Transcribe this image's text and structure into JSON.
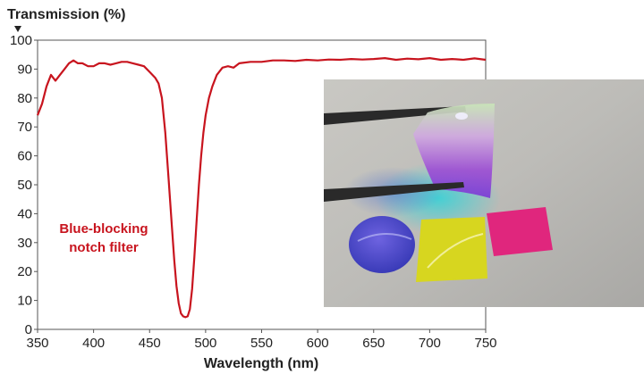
{
  "chart_data": {
    "type": "line",
    "title": "",
    "ylabel": "Transmission (%)",
    "xlabel": "Wavelength (nm)",
    "xlim": [
      350,
      750
    ],
    "ylim": [
      0,
      100
    ],
    "xticks": [
      350,
      400,
      450,
      500,
      550,
      600,
      650,
      700,
      750
    ],
    "yticks": [
      0,
      10,
      20,
      30,
      40,
      50,
      60,
      70,
      80,
      90,
      100
    ],
    "grid": false,
    "annotation": [
      "Blue-blocking",
      "notch filter"
    ],
    "series": [
      {
        "color": "#c8141e",
        "x": [
          350,
          354,
          358,
          362,
          366,
          370,
          374,
          378,
          382,
          386,
          390,
          395,
          400,
          405,
          410,
          415,
          420,
          425,
          430,
          435,
          440,
          445,
          450,
          455,
          458,
          461,
          464,
          467,
          470,
          472,
          474,
          476,
          478,
          480,
          482,
          484,
          486,
          488,
          490,
          492,
          494,
          496,
          498,
          500,
          503,
          506,
          510,
          515,
          520,
          525,
          530,
          540,
          550,
          560,
          570,
          580,
          590,
          600,
          610,
          620,
          630,
          640,
          650,
          660,
          670,
          680,
          690,
          700,
          710,
          720,
          730,
          740,
          750
        ],
        "values": [
          74,
          78,
          84,
          88,
          86,
          88,
          90,
          92,
          93,
          92,
          92,
          91,
          91,
          92,
          92,
          91.5,
          92,
          92.5,
          92.5,
          92,
          91.5,
          91,
          89,
          87,
          85,
          80,
          68,
          52,
          35,
          24,
          15,
          9,
          5.5,
          4.5,
          4.2,
          4.5,
          7,
          14,
          25,
          38,
          50,
          60,
          68,
          74,
          80,
          84,
          88,
          90.5,
          91,
          90.5,
          92,
          92.5,
          92.5,
          93,
          93,
          92.8,
          93.2,
          93,
          93.3,
          93.2,
          93.5,
          93.3,
          93.5,
          93.8,
          93.2,
          93.6,
          93.4,
          93.8,
          93.2,
          93.5,
          93.2,
          93.7,
          93.2
        ]
      }
    ],
    "photo": {
      "description_colors": [
        "#b9bab6",
        "#8fa0a8"
      ]
    }
  }
}
